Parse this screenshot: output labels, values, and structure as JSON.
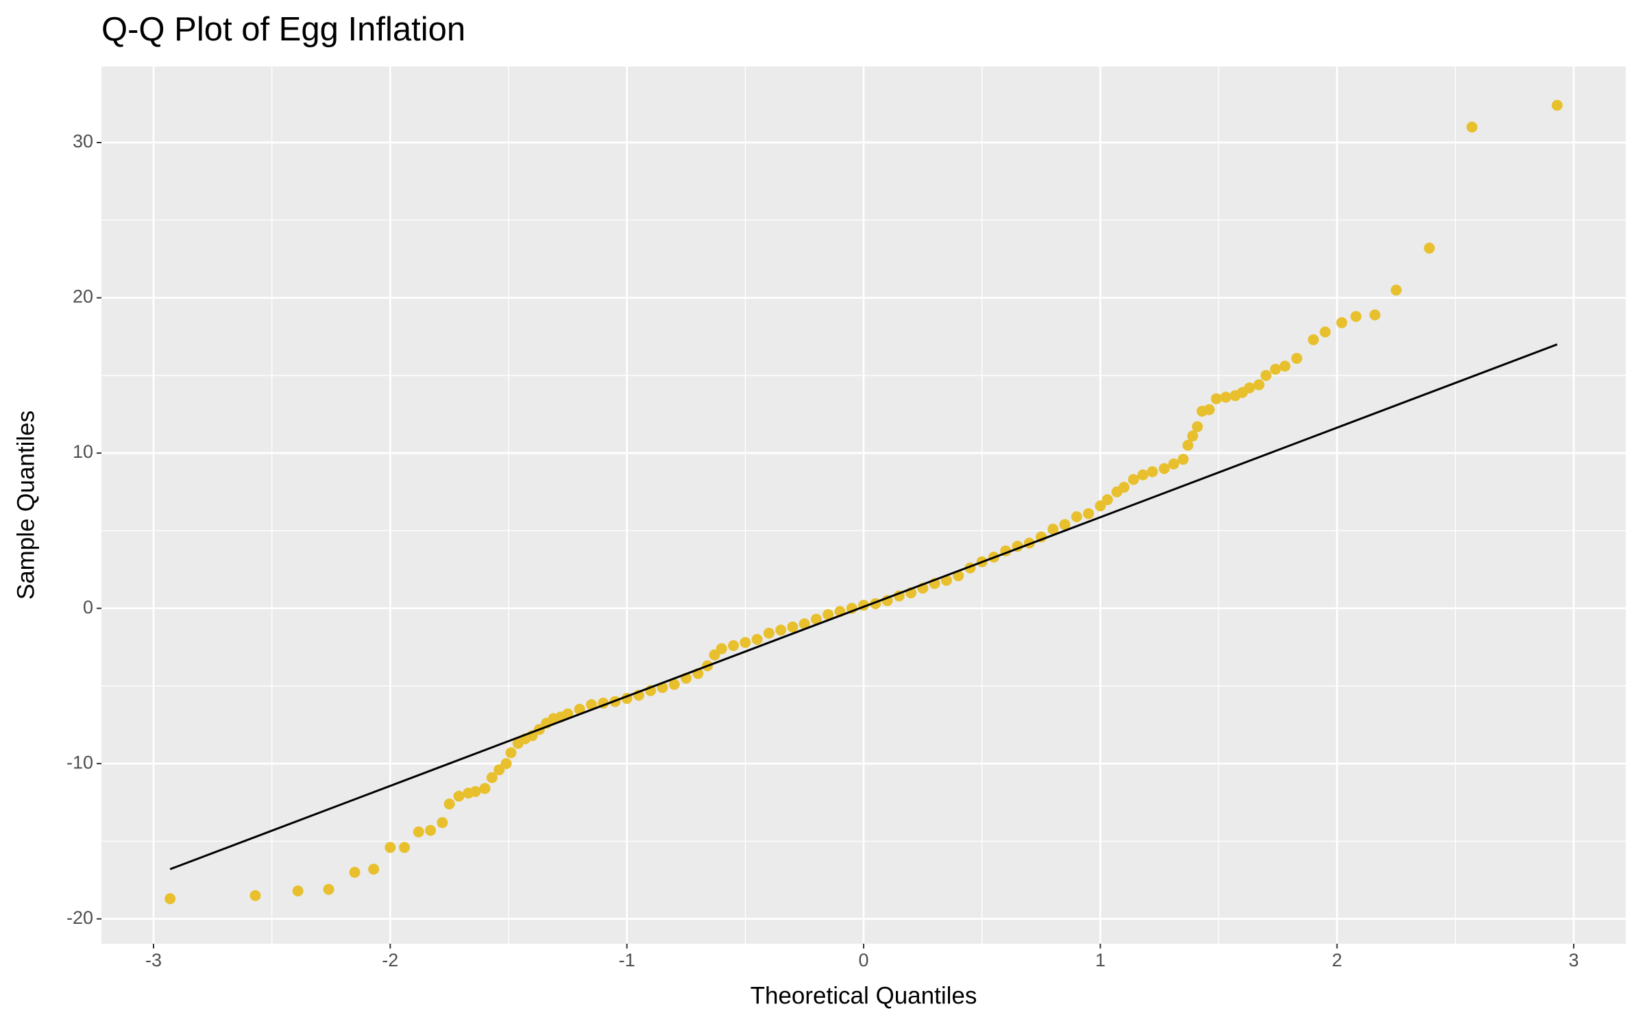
{
  "chart_data": {
    "type": "scatter",
    "title": "Q-Q Plot of Egg Inflation",
    "xlabel": "Theoretical Quantiles",
    "ylabel": "Sample Quantiles",
    "xlim": [
      -3.22,
      3.22
    ],
    "ylim": [
      -21.6,
      34.9
    ],
    "xticks": [
      -3,
      -2,
      -1,
      0,
      1,
      2,
      3
    ],
    "yticks": [
      -20,
      -10,
      0,
      10,
      20,
      30
    ],
    "minor_xticks": [
      -2.5,
      -1.5,
      -0.5,
      0.5,
      1.5,
      2.5
    ],
    "minor_yticks": [
      -15,
      -5,
      5,
      15,
      25
    ],
    "grid": true,
    "background": "#ebebeb",
    "series": [
      {
        "color": "#e8c02e",
        "x": [
          -2.93,
          -2.57,
          -2.39,
          -2.26,
          -2.15,
          -2.07,
          -2.0,
          -1.94,
          -1.88,
          -1.83,
          -1.78,
          -1.75,
          -1.71,
          -1.67,
          -1.64,
          -1.6,
          -1.57,
          -1.54,
          -1.51,
          -1.49,
          -1.46,
          -1.43,
          -1.4,
          -1.37,
          -1.34,
          -1.31,
          -1.28,
          -1.25,
          -1.2,
          -1.15,
          -1.1,
          -1.05,
          -1.0,
          -0.95,
          -0.9,
          -0.85,
          -0.8,
          -0.75,
          -0.7,
          -0.66,
          -0.63,
          -0.6,
          -0.55,
          -0.5,
          -0.45,
          -0.4,
          -0.35,
          -0.3,
          -0.25,
          -0.2,
          -0.15,
          -0.1,
          -0.05,
          0.0,
          0.05,
          0.1,
          0.15,
          0.2,
          0.25,
          0.3,
          0.35,
          0.4,
          0.45,
          0.5,
          0.55,
          0.6,
          0.65,
          0.7,
          0.75,
          0.8,
          0.85,
          0.9,
          0.95,
          1.0,
          1.03,
          1.07,
          1.1,
          1.14,
          1.18,
          1.22,
          1.27,
          1.31,
          1.35,
          1.37,
          1.39,
          1.41,
          1.43,
          1.46,
          1.49,
          1.53,
          1.57,
          1.6,
          1.63,
          1.67,
          1.7,
          1.74,
          1.78,
          1.83,
          1.9,
          1.95,
          2.02,
          2.08,
          2.16,
          2.25,
          2.39,
          2.57,
          2.93
        ],
        "values": [
          -18.7,
          -18.5,
          -18.2,
          -18.1,
          -17.0,
          -16.8,
          -15.4,
          -15.4,
          -14.4,
          -14.3,
          -13.8,
          -12.6,
          -12.1,
          -11.9,
          -11.8,
          -11.6,
          -10.9,
          -10.4,
          -10.0,
          -9.3,
          -8.7,
          -8.4,
          -8.2,
          -7.8,
          -7.4,
          -7.1,
          -7.0,
          -6.8,
          -6.5,
          -6.2,
          -6.1,
          -6.0,
          -5.8,
          -5.6,
          -5.3,
          -5.1,
          -4.9,
          -4.5,
          -4.2,
          -3.7,
          -3.0,
          -2.6,
          -2.4,
          -2.2,
          -2.0,
          -1.6,
          -1.4,
          -1.2,
          -1.0,
          -0.7,
          -0.4,
          -0.2,
          0.0,
          0.2,
          0.3,
          0.5,
          0.8,
          1.0,
          1.3,
          1.6,
          1.8,
          2.1,
          2.6,
          3.0,
          3.3,
          3.7,
          4.0,
          4.2,
          4.6,
          5.1,
          5.4,
          5.9,
          6.1,
          6.6,
          7.0,
          7.5,
          7.8,
          8.3,
          8.6,
          8.8,
          9.0,
          9.3,
          9.6,
          10.5,
          11.1,
          11.7,
          12.7,
          12.8,
          13.5,
          13.6,
          13.7,
          13.9,
          14.2,
          14.4,
          15.0,
          15.4,
          15.6,
          16.1,
          17.3,
          17.8,
          18.4,
          18.8,
          18.9,
          20.5,
          23.2,
          31.0,
          32.4
        ]
      }
    ],
    "reference_line": {
      "color": "#000000",
      "x": [
        -2.93,
        2.93
      ],
      "values": [
        -16.8,
        17.0
      ]
    }
  }
}
